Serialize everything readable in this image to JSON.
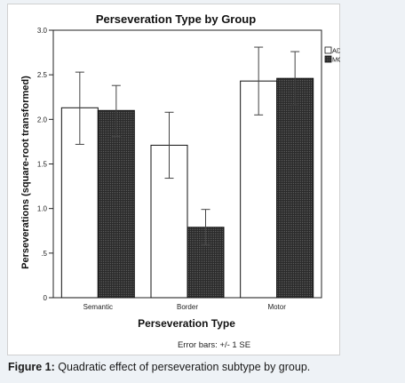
{
  "chart_data": {
    "type": "bar",
    "title": "Perseveration Type by Group",
    "xlabel": "Perseveration Type",
    "ylabel": "Perseverations (square-root transformed)",
    "categories": [
      "Semantic",
      "Border",
      "Motor"
    ],
    "ylim": [
      0,
      3.0
    ],
    "yticks": [
      "0",
      ".5",
      "1.0",
      "1.5",
      "2.0",
      "2.5",
      "3.0"
    ],
    "grid": false,
    "legend": "top-right",
    "series": [
      {
        "name": "AD",
        "color": "#ffffff",
        "values": [
          2.13,
          1.71,
          2.43
        ],
        "err_low": [
          1.72,
          1.34,
          2.05
        ],
        "err_high": [
          2.53,
          2.08,
          2.81
        ]
      },
      {
        "name": "MCI",
        "color": "#1c1c1c",
        "values": [
          2.1,
          0.79,
          2.46
        ],
        "err_low": [
          1.81,
          0.59,
          2.16
        ],
        "err_high": [
          2.38,
          0.99,
          2.76
        ]
      }
    ],
    "error_bar_note": "Error bars: +/- 1 SE"
  },
  "caption": {
    "label": "Figure 1:",
    "text": "Quadratic effect of perseveration subtype by group."
  }
}
